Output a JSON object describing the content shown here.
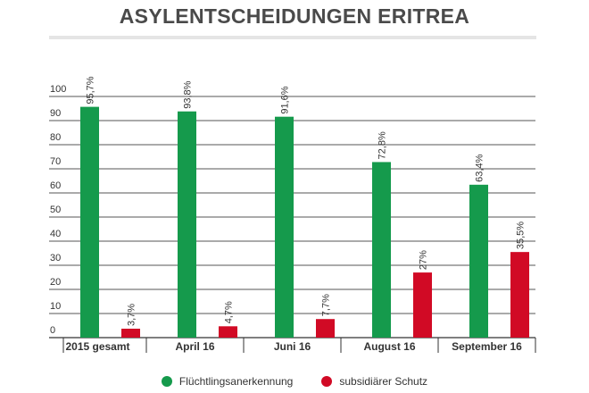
{
  "title": "ASYLENTSCHEIDUNGEN ERITREA",
  "colors": {
    "series1": "#159a4c",
    "series2": "#d10a25",
    "title": "#4a4a4a",
    "grid": "#555555"
  },
  "chart_data": {
    "type": "bar",
    "title": "ASYLENTSCHEIDUNGEN ERITREA",
    "categories": [
      "2015 gesamt",
      "April 16",
      "Juni 16",
      "August 16",
      "September 16"
    ],
    "series": [
      {
        "name": "Flüchtlingsanerkennung",
        "values": [
          95.7,
          93.8,
          91.6,
          72.8,
          63.4
        ],
        "labels": [
          "95,7%",
          "93,8%",
          "91,6%",
          "72,8%",
          "63,4%"
        ]
      },
      {
        "name": "subsidiärer Schutz",
        "values": [
          3.7,
          4.7,
          7.7,
          27,
          35.5
        ],
        "labels": [
          "3,7%",
          "4,7%",
          "7,7%",
          "27%",
          "35,5%"
        ]
      }
    ],
    "yticks": [
      "0",
      "10",
      "20",
      "30",
      "40",
      "50",
      "60",
      "70",
      "80",
      "90",
      "100"
    ],
    "ylim": [
      0,
      100
    ],
    "grid": true,
    "legend_position": "bottom"
  }
}
